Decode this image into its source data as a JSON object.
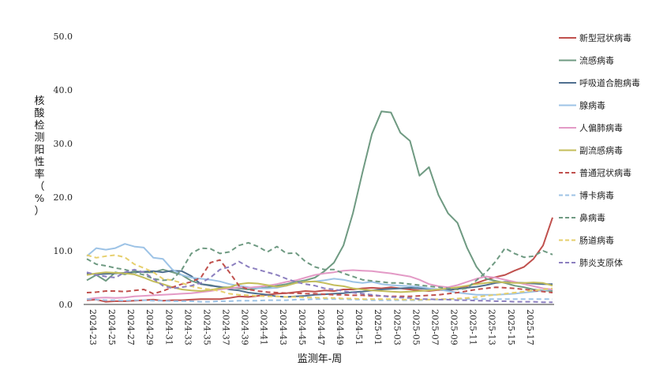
{
  "chart_data": {
    "type": "line",
    "xlabel": "监测年-周",
    "ylabel": "核酸检测阳性率（%）",
    "ylim": [
      0,
      50
    ],
    "yticks": [
      "0.0",
      "10.0",
      "20.0",
      "30.0",
      "40.0",
      "50.0"
    ],
    "grid": false,
    "legend_position": "right",
    "x_tick_labels": [
      "2024-23",
      "2024-25",
      "2024-27",
      "2024-29",
      "2024-31",
      "2024-33",
      "2024-35",
      "2024-37",
      "2024-39",
      "2024-41",
      "2024-43",
      "2024-45",
      "2024-47",
      "2024-49",
      "2024-51",
      "2025-01",
      "2025-03",
      "2025-05",
      "2025-07",
      "2025-09",
      "2025-11",
      "2025-13",
      "2025-15",
      "2025-17"
    ],
    "n_points": 50,
    "series": [
      {
        "name": "新型冠状病毒",
        "color": "#c0504d",
        "dash": "solid",
        "values": [
          0.8,
          0.9,
          0.5,
          0.6,
          0.6,
          0.7,
          0.8,
          0.9,
          0.7,
          0.8,
          0.8,
          0.9,
          1.0,
          1.0,
          1.0,
          1.2,
          1.5,
          1.4,
          1.6,
          1.8,
          2.0,
          2.1,
          2.3,
          2.5,
          2.4,
          2.6,
          2.5,
          2.8,
          2.8,
          3.0,
          3.1,
          3.0,
          3.2,
          3.0,
          2.8,
          2.6,
          2.5,
          2.7,
          2.6,
          2.9,
          3.4,
          4.0,
          4.6,
          5.1,
          5.5,
          6.3,
          7.0,
          8.5,
          11.0,
          16.2
        ]
      },
      {
        "name": "流感病毒",
        "color": "#6f9a82",
        "dash": "solid",
        "values": [
          4.5,
          5.5,
          4.4,
          6.0,
          5.6,
          6.2,
          6.0,
          6.0,
          6.5,
          6.0,
          5.5,
          4.4,
          3.8,
          3.6,
          3.2,
          3.2,
          3.0,
          2.8,
          3.0,
          3.2,
          3.5,
          3.8,
          4.2,
          4.5,
          5.0,
          6.2,
          7.8,
          11.0,
          17.0,
          24.6,
          31.8,
          36.0,
          35.8,
          32.0,
          30.5,
          24.0,
          25.6,
          20.4,
          17.0,
          15.2,
          10.6,
          7.0,
          4.8,
          4.4,
          4.0,
          3.5,
          3.2,
          2.8,
          2.6,
          2.5
        ]
      },
      {
        "name": "呼吸道合胞病毒",
        "color": "#4f6f8f",
        "dash": "solid",
        "values": [
          5.8,
          5.6,
          5.7,
          5.8,
          5.9,
          6.0,
          6.1,
          6.2,
          6.0,
          6.3,
          6.2,
          5.3,
          3.8,
          3.5,
          3.3,
          2.8,
          2.6,
          2.2,
          2.0,
          1.8,
          1.5,
          1.4,
          1.5,
          1.6,
          1.8,
          1.9,
          2.0,
          2.1,
          2.3,
          2.4,
          2.6,
          2.8,
          2.9,
          3.0,
          3.1,
          3.0,
          2.9,
          2.8,
          2.7,
          2.9,
          3.1,
          3.3,
          3.6,
          4.0,
          4.2,
          4.1,
          4.0,
          3.9,
          3.8,
          3.8
        ]
      },
      {
        "name": "腺病毒",
        "color": "#9dc3e6",
        "dash": "solid",
        "values": [
          9.0,
          10.5,
          10.2,
          10.5,
          11.3,
          10.8,
          10.6,
          8.7,
          8.5,
          6.5,
          5.5,
          5.0,
          4.8,
          4.6,
          4.3,
          3.8,
          3.5,
          3.2,
          3.0,
          3.0,
          3.1,
          3.5,
          4.0,
          4.2,
          4.3,
          4.5,
          4.8,
          4.6,
          4.2,
          4.0,
          4.2,
          3.8,
          3.6,
          3.5,
          3.4,
          3.3,
          3.0,
          2.8,
          2.5,
          2.2,
          2.0,
          1.8,
          1.8,
          1.8,
          1.9,
          2.0,
          2.2,
          2.4,
          2.6,
          2.8
        ]
      },
      {
        "name": "人偏肺病毒",
        "color": "#e39ac6",
        "dash": "solid",
        "values": [
          1.0,
          1.2,
          1.3,
          1.2,
          1.3,
          1.5,
          1.6,
          1.7,
          1.8,
          1.9,
          2.0,
          2.1,
          2.3,
          2.5,
          2.8,
          3.0,
          3.2,
          3.1,
          3.3,
          3.5,
          3.8,
          4.2,
          4.5,
          5.0,
          5.5,
          5.8,
          6.0,
          6.3,
          6.4,
          6.3,
          6.2,
          6.0,
          5.8,
          5.5,
          5.2,
          4.6,
          3.8,
          3.4,
          3.2,
          3.6,
          4.2,
          4.8,
          5.2,
          5.0,
          4.6,
          4.2,
          3.8,
          3.4,
          3.0,
          2.8
        ]
      },
      {
        "name": "副流感病毒",
        "color": "#c4bd5a",
        "dash": "solid",
        "values": [
          5.5,
          5.8,
          6.0,
          5.9,
          5.8,
          5.6,
          5.0,
          4.3,
          3.8,
          3.2,
          2.8,
          2.6,
          2.5,
          2.7,
          3.0,
          3.2,
          3.8,
          4.0,
          3.9,
          3.6,
          3.3,
          3.5,
          4.0,
          4.2,
          4.3,
          4.0,
          3.6,
          3.4,
          3.0,
          2.8,
          2.6,
          2.5,
          2.4,
          2.3,
          2.4,
          2.5,
          2.6,
          2.8,
          3.0,
          3.2,
          3.5,
          3.8,
          4.0,
          4.2,
          4.1,
          4.0,
          4.0,
          4.1,
          4.0,
          3.5
        ]
      },
      {
        "name": "普通冠状病毒",
        "color": "#c0504d",
        "dash": "dash",
        "values": [
          2.2,
          2.3,
          2.5,
          2.5,
          2.4,
          2.6,
          2.8,
          2.0,
          2.5,
          3.2,
          3.8,
          4.2,
          5.0,
          7.8,
          8.3,
          6.0,
          3.5,
          2.8,
          2.5,
          2.3,
          2.2,
          2.1,
          2.1,
          2.0,
          2.0,
          1.9,
          1.8,
          1.8,
          1.7,
          1.7,
          1.6,
          1.6,
          1.5,
          1.5,
          1.5,
          1.6,
          1.7,
          1.8,
          2.0,
          2.2,
          2.5,
          2.8,
          3.0,
          3.2,
          3.1,
          3.0,
          2.8,
          2.6,
          2.4,
          2.2
        ]
      },
      {
        "name": "博卡病毒",
        "color": "#9dc3e6",
        "dash": "dash",
        "values": [
          1.0,
          0.9,
          0.8,
          0.8,
          0.7,
          0.8,
          0.8,
          0.7,
          0.7,
          0.6,
          0.6,
          0.6,
          0.5,
          0.5,
          0.6,
          0.6,
          0.7,
          0.7,
          0.7,
          0.8,
          0.8,
          0.8,
          0.9,
          0.9,
          1.0,
          1.0,
          1.0,
          1.0,
          0.9,
          0.9,
          0.8,
          0.8,
          0.8,
          0.8,
          0.8,
          0.8,
          0.9,
          0.9,
          1.0,
          1.0,
          1.0,
          1.0,
          1.0,
          1.0,
          1.0,
          1.0,
          1.0,
          1.0,
          1.0,
          1.0
        ]
      },
      {
        "name": "鼻病毒",
        "color": "#6f9a82",
        "dash": "dash",
        "values": [
          8.5,
          7.5,
          7.2,
          6.8,
          6.5,
          6.0,
          5.5,
          4.8,
          4.5,
          4.6,
          6.5,
          9.5,
          10.5,
          10.4,
          9.5,
          9.8,
          11.0,
          11.5,
          10.8,
          9.8,
          10.8,
          9.5,
          9.6,
          8.0,
          7.0,
          6.5,
          6.5,
          5.8,
          5.2,
          4.6,
          4.4,
          4.2,
          4.0,
          4.0,
          3.8,
          3.6,
          3.4,
          3.2,
          3.0,
          2.8,
          3.0,
          4.5,
          6.0,
          8.0,
          10.5,
          9.5,
          8.8,
          9.0,
          10.0,
          9.3
        ]
      },
      {
        "name": "肠道病毒",
        "color": "#e6cf6c",
        "dash": "dash",
        "values": [
          9.2,
          8.7,
          9.0,
          9.2,
          8.8,
          7.5,
          6.8,
          6.0,
          4.8,
          4.5,
          4.0,
          3.4,
          3.0,
          2.8,
          2.5,
          2.0,
          1.8,
          1.7,
          1.6,
          1.5,
          1.5,
          1.4,
          1.4,
          1.3,
          1.3,
          1.2,
          1.2,
          1.1,
          1.1,
          1.0,
          1.0,
          1.0,
          1.0,
          0.9,
          0.9,
          0.9,
          0.9,
          1.0,
          1.0,
          1.1,
          1.2,
          1.4,
          1.6,
          1.8,
          2.0,
          2.2,
          2.4,
          2.6,
          2.8,
          3.0
        ]
      },
      {
        "name": "肺炎支原体",
        "color": "#8c7fbf",
        "dash": "dash",
        "values": [
          6.0,
          5.5,
          5.2,
          5.0,
          6.0,
          6.5,
          6.0,
          4.8,
          3.5,
          3.0,
          3.2,
          3.5,
          4.0,
          5.0,
          6.5,
          7.0,
          8.0,
          7.0,
          6.5,
          6.0,
          5.5,
          4.8,
          4.2,
          3.8,
          3.5,
          3.0,
          2.8,
          2.5,
          2.2,
          2.0,
          1.8,
          1.6,
          1.4,
          1.3,
          1.2,
          1.0,
          1.0,
          0.9,
          0.9,
          0.8,
          0.8,
          0.7,
          0.7,
          0.6,
          0.6,
          0.5,
          0.5,
          0.5,
          0.4,
          0.4
        ]
      }
    ]
  }
}
